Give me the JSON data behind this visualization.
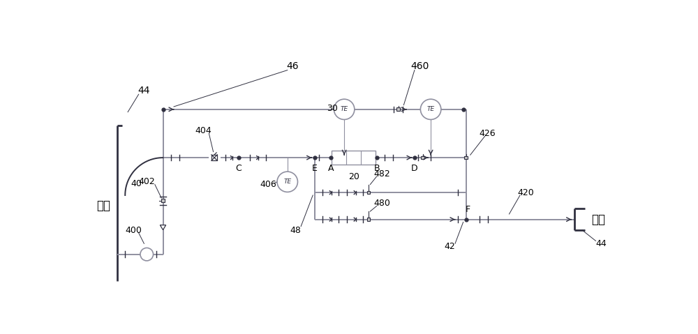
{
  "bg_color": "#ffffff",
  "line_color": "#9090a0",
  "dark_color": "#303040",
  "text_color": "#000000",
  "fig_width": 10.0,
  "fig_height": 4.79,
  "labels": {
    "44_left": "44",
    "400": "400",
    "402": "402",
    "404": "404",
    "406": "406",
    "40": "40",
    "46": "46",
    "460": "460",
    "30": "30",
    "426": "426",
    "20": "20",
    "482": "482",
    "480": "480",
    "48": "48",
    "42": "42",
    "420": "420",
    "44_right": "44",
    "C": "C",
    "E": "E",
    "A": "A",
    "B": "B",
    "D": "D",
    "F": "F",
    "dahai_left": "大海",
    "dahai_right": "大海"
  }
}
